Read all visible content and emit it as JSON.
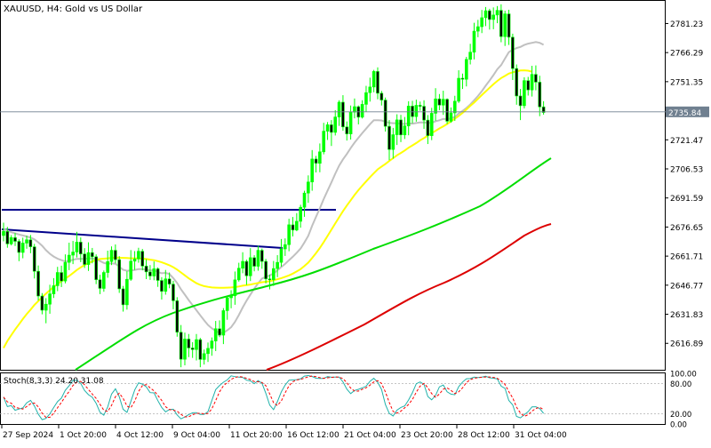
{
  "chart_data": {
    "type": "candlestick",
    "symbol_line": "XAUUSD, H4:  Gold vs US Dollar",
    "current_price": "2735.84",
    "y_ticks": [
      "2781.23",
      "2766.29",
      "2751.35",
      "2736.41",
      "2721.47",
      "2706.53",
      "2691.59",
      "2676.65",
      "2661.71",
      "2646.77",
      "2631.83",
      "2616.89"
    ],
    "ylim": [
      2603.3,
      2792.4
    ],
    "x_ticks": [
      "27 Sep 2024",
      "1 Oct 20:00",
      "4 Oct 12:00",
      "9 Oct 04:00",
      "11 Oct 20:00",
      "16 Oct 12:00",
      "21 Oct 04:00",
      "23 Oct 20:00",
      "28 Oct 12:00",
      "31 Oct 04:00"
    ],
    "candles": [
      {
        "o": 2672.3,
        "c": 2674.4,
        "h": 2678.9,
        "l": 2669.3
      },
      {
        "o": 2674.4,
        "c": 2668.0,
        "h": 2676.7,
        "l": 2666.0
      },
      {
        "o": 2668.0,
        "c": 2671.2,
        "h": 2672.5,
        "l": 2667.2
      },
      {
        "o": 2671.2,
        "c": 2669.3,
        "h": 2673.6,
        "l": 2666.9
      },
      {
        "o": 2669.3,
        "c": 2663.6,
        "h": 2670.4,
        "l": 2659.1
      },
      {
        "o": 2663.6,
        "c": 2668.4,
        "h": 2671.2,
        "l": 2660.6
      },
      {
        "o": 2668.4,
        "c": 2670.1,
        "h": 2672.2,
        "l": 2665.5
      },
      {
        "o": 2670.1,
        "c": 2666.5,
        "h": 2672.6,
        "l": 2663.2
      },
      {
        "o": 2666.5,
        "c": 2653.9,
        "h": 2668.0,
        "l": 2650.2
      },
      {
        "o": 2653.9,
        "c": 2641.2,
        "h": 2656.9,
        "l": 2638.9
      },
      {
        "o": 2641.2,
        "c": 2633.9,
        "h": 2642.7,
        "l": 2631.8
      },
      {
        "o": 2633.9,
        "c": 2637.0,
        "h": 2640.1,
        "l": 2627.2
      },
      {
        "o": 2637.0,
        "c": 2642.3,
        "h": 2647.0,
        "l": 2632.1
      },
      {
        "o": 2642.3,
        "c": 2646.5,
        "h": 2650.4,
        "l": 2640.2
      },
      {
        "o": 2646.5,
        "c": 2653.3,
        "h": 2656.2,
        "l": 2643.7
      },
      {
        "o": 2653.3,
        "c": 2648.9,
        "h": 2656.8,
        "l": 2645.8
      },
      {
        "o": 2648.9,
        "c": 2658.5,
        "h": 2662.6,
        "l": 2647.7
      },
      {
        "o": 2658.5,
        "c": 2662.2,
        "h": 2668.6,
        "l": 2654.5
      },
      {
        "o": 2662.2,
        "c": 2663.8,
        "h": 2669.5,
        "l": 2657.6
      },
      {
        "o": 2663.8,
        "c": 2668.9,
        "h": 2674.2,
        "l": 2661.0
      },
      {
        "o": 2668.9,
        "c": 2662.8,
        "h": 2671.3,
        "l": 2658.6
      },
      {
        "o": 2662.8,
        "c": 2657.4,
        "h": 2665.8,
        "l": 2655.6
      },
      {
        "o": 2657.4,
        "c": 2663.5,
        "h": 2668.8,
        "l": 2654.1
      },
      {
        "o": 2663.5,
        "c": 2661.4,
        "h": 2665.9,
        "l": 2658.0
      },
      {
        "o": 2661.4,
        "c": 2649.6,
        "h": 2662.6,
        "l": 2647.3
      },
      {
        "o": 2649.6,
        "c": 2645.1,
        "h": 2652.2,
        "l": 2642.2
      },
      {
        "o": 2645.1,
        "c": 2653.3,
        "h": 2654.3,
        "l": 2643.4
      },
      {
        "o": 2653.3,
        "c": 2658.9,
        "h": 2664.5,
        "l": 2650.6
      },
      {
        "o": 2658.9,
        "c": 2664.7,
        "h": 2666.7,
        "l": 2657.1
      },
      {
        "o": 2664.7,
        "c": 2659.9,
        "h": 2667.7,
        "l": 2658.0
      },
      {
        "o": 2659.9,
        "c": 2644.9,
        "h": 2661.7,
        "l": 2642.8
      },
      {
        "o": 2644.9,
        "c": 2636.7,
        "h": 2646.4,
        "l": 2633.2
      },
      {
        "o": 2636.7,
        "c": 2649.8,
        "h": 2653.9,
        "l": 2634.2
      },
      {
        "o": 2649.8,
        "c": 2659.1,
        "h": 2664.8,
        "l": 2649.0
      },
      {
        "o": 2659.1,
        "c": 2660.3,
        "h": 2664.3,
        "l": 2654.6
      },
      {
        "o": 2660.3,
        "c": 2664.2,
        "h": 2666.0,
        "l": 2658.3
      },
      {
        "o": 2664.2,
        "c": 2656.6,
        "h": 2665.4,
        "l": 2654.4
      },
      {
        "o": 2656.6,
        "c": 2653.6,
        "h": 2660.1,
        "l": 2649.9
      },
      {
        "o": 2653.6,
        "c": 2651.5,
        "h": 2657.1,
        "l": 2649.5
      },
      {
        "o": 2651.5,
        "c": 2655.2,
        "h": 2659.0,
        "l": 2649.3
      },
      {
        "o": 2655.2,
        "c": 2649.2,
        "h": 2655.9,
        "l": 2645.9
      },
      {
        "o": 2649.2,
        "c": 2643.6,
        "h": 2650.9,
        "l": 2639.4
      },
      {
        "o": 2643.6,
        "c": 2650.0,
        "h": 2654.6,
        "l": 2641.9
      },
      {
        "o": 2650.0,
        "c": 2647.3,
        "h": 2653.3,
        "l": 2645.2
      },
      {
        "o": 2647.3,
        "c": 2638.8,
        "h": 2649.0,
        "l": 2634.4
      },
      {
        "o": 2638.8,
        "c": 2622.6,
        "h": 2640.6,
        "l": 2620.3
      },
      {
        "o": 2622.6,
        "c": 2608.7,
        "h": 2626.3,
        "l": 2604.6
      },
      {
        "o": 2608.7,
        "c": 2619.1,
        "h": 2622.4,
        "l": 2605.6
      },
      {
        "o": 2619.1,
        "c": 2614.5,
        "h": 2621.7,
        "l": 2609.8
      },
      {
        "o": 2614.5,
        "c": 2613.7,
        "h": 2617.5,
        "l": 2609.4
      },
      {
        "o": 2613.7,
        "c": 2618.8,
        "h": 2621.7,
        "l": 2608.1
      },
      {
        "o": 2618.8,
        "c": 2608.6,
        "h": 2619.7,
        "l": 2604.6
      },
      {
        "o": 2608.6,
        "c": 2611.6,
        "h": 2613.7,
        "l": 2606.0
      },
      {
        "o": 2611.6,
        "c": 2614.3,
        "h": 2617.3,
        "l": 2607.3
      },
      {
        "o": 2614.3,
        "c": 2618.1,
        "h": 2619.9,
        "l": 2610.5
      },
      {
        "o": 2618.1,
        "c": 2624.4,
        "h": 2628.4,
        "l": 2612.9
      },
      {
        "o": 2624.4,
        "c": 2621.1,
        "h": 2628.7,
        "l": 2620.1
      },
      {
        "o": 2621.1,
        "c": 2633.7,
        "h": 2635.0,
        "l": 2616.5
      },
      {
        "o": 2633.7,
        "c": 2640.3,
        "h": 2641.4,
        "l": 2629.0
      },
      {
        "o": 2640.3,
        "c": 2641.3,
        "h": 2644.2,
        "l": 2634.9
      },
      {
        "o": 2641.3,
        "c": 2649.5,
        "h": 2653.8,
        "l": 2636.7
      },
      {
        "o": 2649.5,
        "c": 2655.5,
        "h": 2658.3,
        "l": 2648.6
      },
      {
        "o": 2655.5,
        "c": 2659.0,
        "h": 2663.7,
        "l": 2652.9
      },
      {
        "o": 2659.0,
        "c": 2651.6,
        "h": 2659.9,
        "l": 2646.9
      },
      {
        "o": 2651.6,
        "c": 2660.9,
        "h": 2665.8,
        "l": 2648.9
      },
      {
        "o": 2660.9,
        "c": 2656.5,
        "h": 2662.2,
        "l": 2653.9
      },
      {
        "o": 2656.5,
        "c": 2664.7,
        "h": 2667.0,
        "l": 2654.2
      },
      {
        "o": 2664.7,
        "c": 2659.0,
        "h": 2665.6,
        "l": 2655.2
      },
      {
        "o": 2659.0,
        "c": 2650.0,
        "h": 2660.3,
        "l": 2647.7
      },
      {
        "o": 2650.0,
        "c": 2649.6,
        "h": 2652.2,
        "l": 2644.6
      },
      {
        "o": 2649.6,
        "c": 2655.3,
        "h": 2659.2,
        "l": 2646.4
      },
      {
        "o": 2655.3,
        "c": 2658.5,
        "h": 2662.2,
        "l": 2650.9
      },
      {
        "o": 2658.5,
        "c": 2665.4,
        "h": 2670.5,
        "l": 2656.3
      },
      {
        "o": 2665.4,
        "c": 2667.6,
        "h": 2670.8,
        "l": 2661.8
      },
      {
        "o": 2667.6,
        "c": 2677.8,
        "h": 2680.9,
        "l": 2664.2
      },
      {
        "o": 2677.8,
        "c": 2675.1,
        "h": 2681.8,
        "l": 2671.8
      },
      {
        "o": 2675.1,
        "c": 2679.6,
        "h": 2683.8,
        "l": 2674.5
      },
      {
        "o": 2679.6,
        "c": 2686.8,
        "h": 2688.1,
        "l": 2676.3
      },
      {
        "o": 2686.8,
        "c": 2694.1,
        "h": 2695.3,
        "l": 2681.9
      },
      {
        "o": 2694.1,
        "c": 2699.8,
        "h": 2703.2,
        "l": 2689.1
      },
      {
        "o": 2699.8,
        "c": 2711.6,
        "h": 2716.2,
        "l": 2695.3
      },
      {
        "o": 2711.6,
        "c": 2709.4,
        "h": 2713.2,
        "l": 2704.7
      },
      {
        "o": 2709.4,
        "c": 2715.3,
        "h": 2719.6,
        "l": 2704.8
      },
      {
        "o": 2715.3,
        "c": 2725.9,
        "h": 2730.2,
        "l": 2714.0
      },
      {
        "o": 2725.9,
        "c": 2729.2,
        "h": 2730.6,
        "l": 2721.4
      },
      {
        "o": 2729.2,
        "c": 2725.3,
        "h": 2731.6,
        "l": 2718.3
      },
      {
        "o": 2725.3,
        "c": 2733.2,
        "h": 2736.7,
        "l": 2723.7
      },
      {
        "o": 2733.2,
        "c": 2740.8,
        "h": 2741.8,
        "l": 2728.6
      },
      {
        "o": 2740.8,
        "c": 2728.1,
        "h": 2744.4,
        "l": 2726.1
      },
      {
        "o": 2728.1,
        "c": 2724.5,
        "h": 2730.9,
        "l": 2721.1
      },
      {
        "o": 2724.5,
        "c": 2735.7,
        "h": 2739.1,
        "l": 2721.6
      },
      {
        "o": 2735.7,
        "c": 2738.5,
        "h": 2742.7,
        "l": 2732.5
      },
      {
        "o": 2738.5,
        "c": 2733.1,
        "h": 2739.1,
        "l": 2729.4
      },
      {
        "o": 2733.1,
        "c": 2739.7,
        "h": 2741.8,
        "l": 2732.4
      },
      {
        "o": 2739.7,
        "c": 2745.7,
        "h": 2749.2,
        "l": 2735.8
      },
      {
        "o": 2745.7,
        "c": 2748.6,
        "h": 2753.4,
        "l": 2741.1
      },
      {
        "o": 2748.6,
        "c": 2756.6,
        "h": 2757.4,
        "l": 2745.9
      },
      {
        "o": 2756.6,
        "c": 2745.4,
        "h": 2758.7,
        "l": 2742.3
      },
      {
        "o": 2745.4,
        "c": 2741.9,
        "h": 2746.6,
        "l": 2739.1
      },
      {
        "o": 2741.9,
        "c": 2728.4,
        "h": 2743.2,
        "l": 2725.7
      },
      {
        "o": 2728.4,
        "c": 2716.5,
        "h": 2731.6,
        "l": 2711.0
      },
      {
        "o": 2716.5,
        "c": 2724.1,
        "h": 2727.6,
        "l": 2711.8
      },
      {
        "o": 2724.1,
        "c": 2731.7,
        "h": 2734.6,
        "l": 2718.8
      },
      {
        "o": 2731.7,
        "c": 2724.0,
        "h": 2734.3,
        "l": 2720.3
      },
      {
        "o": 2724.0,
        "c": 2728.6,
        "h": 2733.2,
        "l": 2721.9
      },
      {
        "o": 2728.6,
        "c": 2738.8,
        "h": 2741.3,
        "l": 2723.8
      },
      {
        "o": 2738.8,
        "c": 2733.4,
        "h": 2741.5,
        "l": 2730.0
      },
      {
        "o": 2733.4,
        "c": 2739.2,
        "h": 2742.1,
        "l": 2730.8
      },
      {
        "o": 2739.2,
        "c": 2738.7,
        "h": 2741.1,
        "l": 2736.4
      },
      {
        "o": 2738.7,
        "c": 2731.6,
        "h": 2741.8,
        "l": 2727.1
      },
      {
        "o": 2731.6,
        "c": 2723.6,
        "h": 2734.2,
        "l": 2719.3
      },
      {
        "o": 2723.6,
        "c": 2735.1,
        "h": 2737.9,
        "l": 2721.3
      },
      {
        "o": 2735.1,
        "c": 2742.5,
        "h": 2748.0,
        "l": 2731.3
      },
      {
        "o": 2742.5,
        "c": 2739.3,
        "h": 2745.0,
        "l": 2736.7
      },
      {
        "o": 2739.3,
        "c": 2742.3,
        "h": 2746.7,
        "l": 2734.3
      },
      {
        "o": 2742.3,
        "c": 2731.0,
        "h": 2742.8,
        "l": 2729.6
      },
      {
        "o": 2731.0,
        "c": 2735.3,
        "h": 2738.1,
        "l": 2730.2
      },
      {
        "o": 2735.3,
        "c": 2741.3,
        "h": 2744.1,
        "l": 2731.2
      },
      {
        "o": 2741.3,
        "c": 2753.1,
        "h": 2757.2,
        "l": 2740.4
      },
      {
        "o": 2753.1,
        "c": 2752.6,
        "h": 2755.5,
        "l": 2747.6
      },
      {
        "o": 2752.6,
        "c": 2762.8,
        "h": 2764.1,
        "l": 2748.9
      },
      {
        "o": 2762.8,
        "c": 2766.5,
        "h": 2770.8,
        "l": 2760.2
      },
      {
        "o": 2766.5,
        "c": 2777.3,
        "h": 2781.6,
        "l": 2762.8
      },
      {
        "o": 2777.3,
        "c": 2779.6,
        "h": 2783.1,
        "l": 2774.2
      },
      {
        "o": 2779.6,
        "c": 2784.2,
        "h": 2788.2,
        "l": 2776.3
      },
      {
        "o": 2784.2,
        "c": 2787.8,
        "h": 2789.7,
        "l": 2779.9
      },
      {
        "o": 2787.8,
        "c": 2783.3,
        "h": 2788.8,
        "l": 2778.1
      },
      {
        "o": 2783.3,
        "c": 2785.6,
        "h": 2789.5,
        "l": 2778.3
      },
      {
        "o": 2785.6,
        "c": 2788.0,
        "h": 2790.2,
        "l": 2781.4
      },
      {
        "o": 2788.0,
        "c": 2774.5,
        "h": 2791.1,
        "l": 2771.6
      },
      {
        "o": 2774.5,
        "c": 2786.2,
        "h": 2787.8,
        "l": 2769.7
      },
      {
        "o": 2786.2,
        "c": 2774.2,
        "h": 2788.3,
        "l": 2770.2
      },
      {
        "o": 2774.2,
        "c": 2758.1,
        "h": 2776.0,
        "l": 2752.2
      },
      {
        "o": 2758.1,
        "c": 2744.0,
        "h": 2760.2,
        "l": 2739.5
      },
      {
        "o": 2744.0,
        "c": 2739.0,
        "h": 2747.6,
        "l": 2731.6
      },
      {
        "o": 2739.0,
        "c": 2751.9,
        "h": 2753.6,
        "l": 2737.6
      },
      {
        "o": 2751.9,
        "c": 2747.1,
        "h": 2753.8,
        "l": 2744.2
      },
      {
        "o": 2747.1,
        "c": 2755.1,
        "h": 2759.5,
        "l": 2743.7
      },
      {
        "o": 2755.1,
        "c": 2751.1,
        "h": 2759.7,
        "l": 2746.9
      },
      {
        "o": 2751.1,
        "c": 2738.4,
        "h": 2754.4,
        "l": 2733.6
      },
      {
        "o": 2738.4,
        "c": 2735.5,
        "h": 2741.3,
        "l": 2734.4
      }
    ],
    "ma_gray": [
      2675.6,
      2674.8,
      2674.0,
      2673.4,
      2672.8,
      2672.3,
      2671.8,
      2671.2,
      2670.3,
      2668.8,
      2667.0,
      2664.8,
      2662.9,
      2661.5,
      2660.4,
      2659.6,
      2659.0,
      2659.3,
      2659.8,
      2660.3,
      2660.3,
      2660.3,
      2660.5,
      2660.6,
      2660.1,
      2659.2,
      2658.2,
      2657.8,
      2658.0,
      2657.8,
      2656.3,
      2654.7,
      2654.2,
      2654.3,
      2654.6,
      2655.0,
      2655.0,
      2654.7,
      2654.4,
      2654.4,
      2653.6,
      2652.9,
      2653.1,
      2652.5,
      2650.4,
      2647.9,
      2644.7,
      2641.9,
      2639.1,
      2636.5,
      2633.9,
      2631.3,
      2628.7,
      2626.3,
      2624.6,
      2623.4,
      2622.1,
      2622.3,
      2623.6,
      2625.2,
      2627.9,
      2631.4,
      2635.3,
      2638.8,
      2642.0,
      2645.0,
      2647.7,
      2650.2,
      2651.0,
      2651.8,
      2652.8,
      2654.4,
      2656.1,
      2657.7,
      2659.6,
      2661.4,
      2663.4,
      2665.6,
      2668.7,
      2672.2,
      2677.3,
      2681.8,
      2686.3,
      2691.0,
      2695.4,
      2699.6,
      2704.0,
      2708.2,
      2711.4,
      2714.2,
      2717.2,
      2720.0,
      2722.5,
      2724.9,
      2727.2,
      2729.5,
      2731.5,
      2731.5,
      2731.4,
      2730.8,
      2730.2,
      2730.0,
      2730.0,
      2729.8,
      2729.6,
      2729.9,
      2729.8,
      2730.1,
      2730.4,
      2730.4,
      2730.2,
      2730.2,
      2731.0,
      2731.5,
      2732.2,
      2732.1,
      2732.5,
      2733.2,
      2735.0,
      2736.3,
      2737.8,
      2739.6,
      2741.8,
      2744.0,
      2746.5,
      2749.3,
      2751.9,
      2754.7,
      2757.7,
      2759.9,
      2763.2,
      2766.5,
      2767.8,
      2768.6,
      2769.2,
      2770.2,
      2770.9,
      2771.3,
      2771.7,
      2771.3,
      2770.3
    ],
    "ma_yellow": [
      2614.5,
      2618.1,
      2621.1,
      2624.0,
      2626.7,
      2629.4,
      2631.9,
      2634.2,
      2636.6,
      2638.6,
      2640.6,
      2642.4,
      2644.2,
      2645.9,
      2647.4,
      2648.8,
      2650.1,
      2651.5,
      2653.0,
      2654.6,
      2655.9,
      2657.1,
      2658.1,
      2659.0,
      2659.7,
      2660.2,
      2660.4,
      2660.6,
      2660.8,
      2661.0,
      2660.9,
      2660.8,
      2660.7,
      2660.6,
      2660.6,
      2660.5,
      2660.4,
      2660.2,
      2659.9,
      2659.6,
      2659.1,
      2658.5,
      2657.8,
      2657.0,
      2656.0,
      2654.8,
      2653.3,
      2651.8,
      2650.3,
      2649.0,
      2647.8,
      2646.9,
      2646.3,
      2645.9,
      2645.6,
      2645.5,
      2645.4,
      2645.4,
      2645.5,
      2645.6,
      2645.8,
      2646.1,
      2646.5,
      2646.8,
      2647.1,
      2647.5,
      2647.9,
      2648.3,
      2648.5,
      2648.8,
      2649.3,
      2649.8,
      2650.4,
      2651.1,
      2651.8,
      2652.7,
      2653.8,
      2655.0,
      2656.6,
      2658.4,
      2660.7,
      2663.2,
      2665.9,
      2668.9,
      2672.1,
      2675.3,
      2678.5,
      2681.7,
      2684.8,
      2687.7,
      2690.4,
      2693.1,
      2695.6,
      2697.9,
      2700.1,
      2702.3,
      2704.3,
      2706.3,
      2707.7,
      2709.1,
      2710.6,
      2712.0,
      2713.5,
      2714.7,
      2716.0,
      2717.4,
      2718.6,
      2719.8,
      2721.2,
      2722.4,
      2723.6,
      2724.9,
      2726.1,
      2727.3,
      2728.4,
      2729.6,
      2730.9,
      2732.3,
      2733.7,
      2735.3,
      2737.1,
      2738.9,
      2740.6,
      2742.5,
      2744.5,
      2746.3,
      2748.2,
      2750.0,
      2751.7,
      2753.2,
      2754.3,
      2755.5,
      2756.2,
      2756.6,
      2757.1,
      2757.2,
      2757.0,
      2756.5
    ]
  }
}
